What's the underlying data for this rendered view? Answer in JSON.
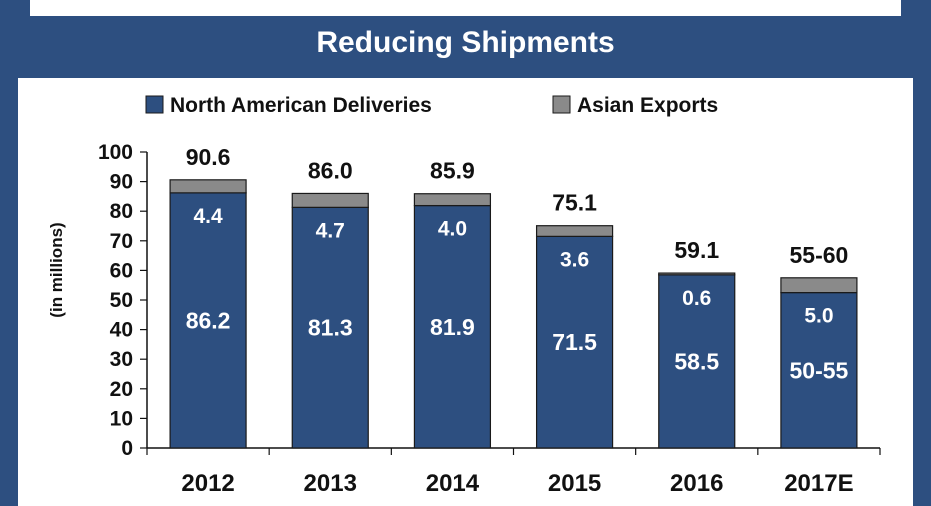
{
  "chart_data": {
    "type": "bar",
    "stacked": true,
    "title": "Reducing Shipments",
    "ylabel": "(in millions)",
    "ylim": [
      0,
      100
    ],
    "yticks": [
      0,
      10,
      20,
      30,
      40,
      50,
      60,
      70,
      80,
      90,
      100
    ],
    "legend_position": "top",
    "categories": [
      "2012",
      "2013",
      "2014",
      "2015",
      "2016",
      "2017E"
    ],
    "series": [
      {
        "name": "North American Deliveries",
        "color": "#2d4f80",
        "values": [
          86.2,
          81.3,
          81.9,
          71.5,
          58.5,
          52.5
        ],
        "labels": [
          "86.2",
          "81.3",
          "81.9",
          "71.5",
          "58.5",
          "50-55"
        ]
      },
      {
        "name": "Asian Exports",
        "color": "#8a8a8a",
        "values": [
          4.4,
          4.7,
          4.0,
          3.6,
          0.6,
          5.0
        ],
        "labels": [
          "4.4",
          "4.7",
          "4.0",
          "3.6",
          "0.6",
          "5.0"
        ]
      }
    ],
    "totals": [
      "90.6",
      "86.0",
      "85.9",
      "75.1",
      "59.1",
      "55-60"
    ]
  }
}
